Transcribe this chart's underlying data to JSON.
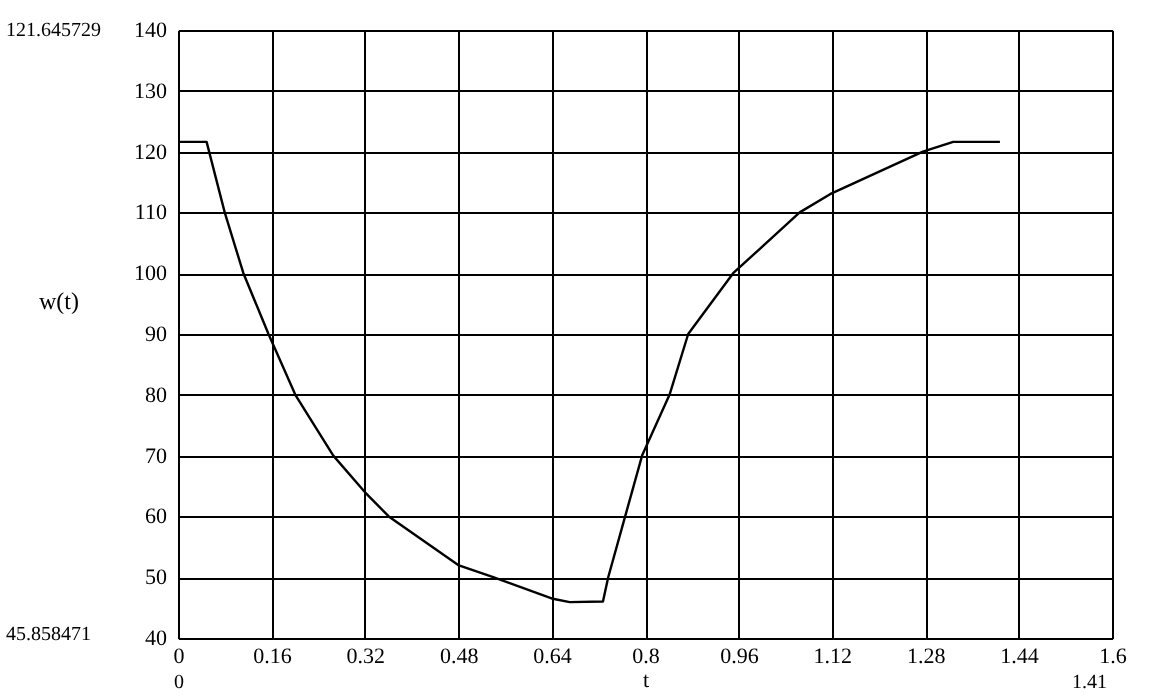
{
  "chart_data": {
    "type": "line",
    "xlabel": "t",
    "ylabel": "w(t)",
    "x": [
      0,
      0.049,
      0.08,
      0.112,
      0.155,
      0.201,
      0.266,
      0.32,
      0.361,
      0.48,
      0.54,
      0.64,
      0.671,
      0.728,
      0.737,
      0.766,
      0.795,
      0.842,
      0.874,
      0.951,
      1.065,
      1.117,
      1.276,
      1.328,
      1.408
    ],
    "series": [
      {
        "color": "#000000",
        "values": [
          121.6,
          121.6,
          110,
          100,
          90,
          80,
          70,
          64,
          60,
          52,
          50,
          46.5,
          45.9,
          46,
          50,
          60,
          70,
          80,
          90,
          100,
          110,
          113,
          120,
          121.6,
          121.6
        ]
      }
    ],
    "xlim": [
      0,
      1.6
    ],
    "xticks": [
      0,
      0.16,
      0.32,
      0.48,
      0.64,
      0.8,
      0.96,
      1.12,
      1.28,
      1.44,
      1.6
    ],
    "ylim": [
      40,
      140
    ],
    "yticks": [
      40,
      50,
      60,
      70,
      80,
      90,
      100,
      110,
      120,
      130,
      140
    ],
    "grid": true,
    "marker": "none",
    "line_style": "solid",
    "annotations": [
      "121.645729",
      "45.858471",
      "0",
      "1.41"
    ]
  }
}
